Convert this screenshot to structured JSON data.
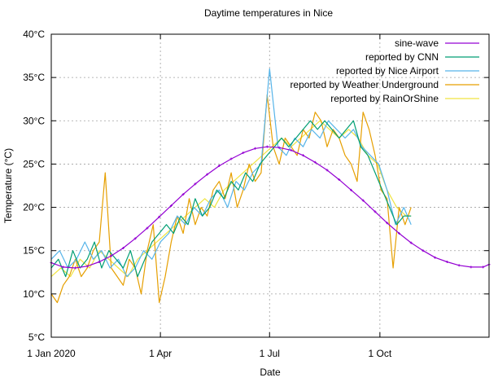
{
  "chart_data": {
    "type": "line",
    "title": "Daytime temperatures in Nice",
    "xlabel": "Date",
    "ylabel": "Temperature (°C)",
    "xlim": [
      0,
      365
    ],
    "ylim": [
      5,
      40
    ],
    "grid": true,
    "legend_position": "top-right",
    "xticks": [
      {
        "value": 0,
        "label": "1 Jan 2020"
      },
      {
        "value": 91,
        "label": "1 Apr"
      },
      {
        "value": 182,
        "label": "1 Jul"
      },
      {
        "value": 274,
        "label": "1 Oct"
      }
    ],
    "yticks": [
      {
        "value": 5,
        "label": "5°C"
      },
      {
        "value": 10,
        "label": "10°C"
      },
      {
        "value": 15,
        "label": "15°C"
      },
      {
        "value": 20,
        "label": "20°C"
      },
      {
        "value": 25,
        "label": "25°C"
      },
      {
        "value": 30,
        "label": "30°C"
      },
      {
        "value": 35,
        "label": "35°C"
      },
      {
        "value": 40,
        "label": "40°C"
      }
    ],
    "series": [
      {
        "name": "sine-wave",
        "color": "#9400d3",
        "style": "line-with-points",
        "x": [
          0,
          10,
          20,
          30,
          40,
          50,
          60,
          70,
          80,
          90,
          100,
          110,
          120,
          130,
          140,
          150,
          160,
          170,
          180,
          190,
          200,
          210,
          220,
          230,
          240,
          250,
          260,
          270,
          280,
          290,
          300,
          310,
          320,
          330,
          340,
          350,
          360,
          365
        ],
        "y": [
          13.6,
          13.1,
          13.0,
          13.2,
          13.7,
          14.4,
          15.3,
          16.4,
          17.6,
          18.9,
          20.2,
          21.5,
          22.7,
          23.8,
          24.8,
          25.6,
          26.3,
          26.8,
          27.0,
          26.9,
          26.6,
          26.0,
          25.2,
          24.3,
          23.2,
          22.0,
          20.8,
          19.5,
          18.2,
          17.0,
          15.9,
          15.0,
          14.2,
          13.7,
          13.3,
          13.1,
          13.1,
          13.4
        ]
      },
      {
        "name": "reported by CNN",
        "color": "#009e73",
        "x": [
          0,
          6,
          12,
          18,
          24,
          30,
          36,
          42,
          48,
          54,
          60,
          66,
          72,
          78,
          84,
          90,
          96,
          102,
          108,
          114,
          120,
          126,
          132,
          138,
          144,
          150,
          156,
          162,
          168,
          174,
          180,
          186,
          192,
          198,
          204,
          210,
          216,
          222,
          228,
          234,
          240,
          246,
          252,
          258,
          264,
          270,
          276,
          282,
          288,
          294,
          300
        ],
        "y": [
          13,
          14,
          12,
          15,
          13,
          14,
          16,
          13,
          15,
          14,
          13,
          15,
          12,
          14,
          16,
          17,
          18,
          17,
          19,
          18,
          21,
          19,
          20,
          22,
          21,
          23,
          22,
          24,
          23,
          25,
          26,
          27,
          28,
          27,
          28,
          29,
          30,
          29,
          30,
          29,
          28,
          29,
          30,
          27,
          26,
          24,
          22,
          20,
          18,
          19,
          19
        ]
      },
      {
        "name": "reported by Nice Airport",
        "color": "#56b4e9",
        "x": [
          0,
          7,
          14,
          21,
          28,
          35,
          42,
          49,
          56,
          63,
          70,
          77,
          84,
          91,
          98,
          105,
          112,
          119,
          126,
          133,
          140,
          147,
          154,
          161,
          168,
          175,
          182,
          189,
          196,
          203,
          210,
          217,
          224,
          231,
          238,
          245,
          252,
          259,
          266,
          273,
          280,
          287,
          294,
          300
        ],
        "y": [
          14,
          15,
          13,
          14,
          16,
          14,
          15,
          13,
          14,
          12,
          13,
          15,
          14,
          16,
          17,
          19,
          18,
          20,
          19,
          21,
          22,
          20,
          23,
          22,
          24,
          25,
          36,
          27,
          26,
          28,
          27,
          29,
          28,
          30,
          29,
          28,
          29,
          27,
          26,
          25,
          22,
          18,
          20,
          18
        ]
      },
      {
        "name": "reported by Weather Underground",
        "color": "#e69f00",
        "x": [
          0,
          5,
          10,
          15,
          20,
          25,
          30,
          35,
          40,
          45,
          50,
          55,
          60,
          65,
          70,
          75,
          80,
          85,
          90,
          95,
          100,
          105,
          110,
          115,
          120,
          125,
          130,
          135,
          140,
          145,
          150,
          155,
          160,
          165,
          170,
          175,
          180,
          185,
          190,
          195,
          200,
          205,
          210,
          215,
          220,
          225,
          230,
          235,
          240,
          245,
          250,
          255,
          260,
          265,
          270,
          275,
          280,
          285,
          290,
          295,
          300
        ],
        "y": [
          10,
          9,
          11,
          12,
          14,
          12,
          13,
          15,
          16,
          24,
          13,
          12,
          11,
          14,
          13,
          10,
          15,
          18,
          9,
          12,
          16,
          19,
          17,
          21,
          18,
          20,
          19,
          22,
          23,
          21,
          24,
          20,
          22,
          25,
          23,
          24,
          33,
          27,
          25,
          28,
          27,
          26,
          29,
          28,
          31,
          30,
          27,
          29,
          28,
          26,
          25,
          23,
          31,
          29,
          26,
          22,
          21,
          13,
          20,
          18,
          20
        ]
      },
      {
        "name": "reported by RainOrShine",
        "color": "#f0e442",
        "x": [
          0,
          8,
          16,
          24,
          32,
          40,
          48,
          56,
          64,
          72,
          80,
          88,
          96,
          104,
          112,
          120,
          128,
          136,
          144,
          152,
          160,
          168,
          176,
          184,
          192,
          200,
          208,
          216,
          224,
          232,
          240,
          248,
          256,
          264,
          272,
          280,
          288,
          296,
          300
        ],
        "y": [
          12,
          13,
          12,
          14,
          13,
          15,
          14,
          13,
          12,
          14,
          15,
          16,
          17,
          18,
          19,
          20,
          21,
          20,
          22,
          23,
          24,
          25,
          26,
          27,
          28,
          27,
          28,
          29,
          30,
          29,
          28,
          29,
          28,
          26,
          25,
          22,
          20,
          19,
          19
        ]
      }
    ]
  }
}
